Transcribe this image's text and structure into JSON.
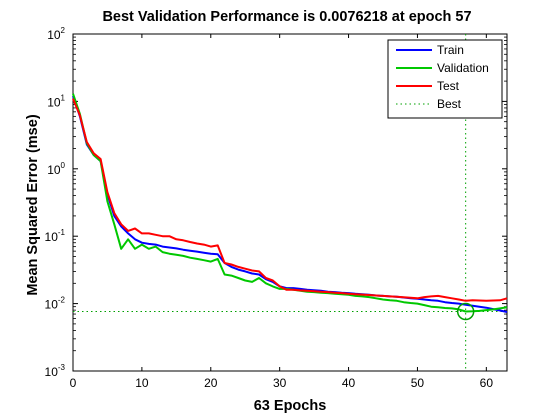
{
  "chart_data": {
    "type": "line",
    "title": "Best Validation Performance is 0.0076218 at epoch 57",
    "xlabel": "63 Epochs",
    "ylabel": "Mean Squared Error  (mse)",
    "xlim": [
      0,
      63
    ],
    "ylim": [
      0.001,
      100
    ],
    "yscale": "log",
    "grid": false,
    "legend_position": "top-right",
    "x_ticks": [
      0,
      10,
      20,
      30,
      40,
      50,
      60
    ],
    "y_ticks": [
      {
        "value": 0.001,
        "base": "10",
        "exp": "-3"
      },
      {
        "value": 0.01,
        "base": "10",
        "exp": "-2"
      },
      {
        "value": 0.1,
        "base": "10",
        "exp": "-1"
      },
      {
        "value": 1,
        "base": "10",
        "exp": "0"
      },
      {
        "value": 10,
        "base": "10",
        "exp": "1"
      },
      {
        "value": 100,
        "base": "10",
        "exp": "2"
      }
    ],
    "series": [
      {
        "name": "Train",
        "color": "#0000ff",
        "x": [
          0,
          1,
          2,
          3,
          4,
          5,
          6,
          7,
          8,
          9,
          10,
          11,
          12,
          13,
          14,
          15,
          16,
          17,
          18,
          19,
          20,
          21,
          22,
          23,
          24,
          25,
          26,
          27,
          28,
          29,
          30,
          31,
          32,
          33,
          34,
          35,
          36,
          37,
          38,
          39,
          40,
          41,
          42,
          43,
          44,
          45,
          46,
          47,
          48,
          49,
          50,
          51,
          52,
          53,
          54,
          55,
          56,
          57,
          58,
          59,
          60,
          61,
          62,
          63
        ],
        "y": [
          12,
          6,
          2.3,
          1.6,
          1.3,
          0.42,
          0.2,
          0.14,
          0.11,
          0.09,
          0.08,
          0.077,
          0.075,
          0.07,
          0.068,
          0.066,
          0.063,
          0.061,
          0.059,
          0.057,
          0.055,
          0.054,
          0.04,
          0.035,
          0.032,
          0.03,
          0.028,
          0.027,
          0.023,
          0.021,
          0.018,
          0.017,
          0.017,
          0.0165,
          0.016,
          0.0158,
          0.0155,
          0.015,
          0.0148,
          0.0145,
          0.0143,
          0.014,
          0.0138,
          0.0135,
          0.0132,
          0.013,
          0.0128,
          0.0126,
          0.0123,
          0.012,
          0.0118,
          0.0115,
          0.0112,
          0.011,
          0.0105,
          0.0102,
          0.01,
          0.0096,
          0.0093,
          0.009,
          0.0087,
          0.0083,
          0.0079,
          0.0075
        ]
      },
      {
        "name": "Validation",
        "color": "#00c800",
        "x": [
          0,
          1,
          2,
          3,
          4,
          5,
          6,
          7,
          8,
          9,
          10,
          11,
          12,
          13,
          14,
          15,
          16,
          17,
          18,
          19,
          20,
          21,
          22,
          23,
          24,
          25,
          26,
          27,
          28,
          29,
          30,
          31,
          32,
          33,
          34,
          35,
          36,
          37,
          38,
          39,
          40,
          41,
          42,
          43,
          44,
          45,
          46,
          47,
          48,
          49,
          50,
          51,
          52,
          53,
          54,
          55,
          56,
          57,
          58,
          59,
          60,
          61,
          62,
          63
        ],
        "y": [
          13,
          6.5,
          2.4,
          1.6,
          1.3,
          0.33,
          0.15,
          0.065,
          0.09,
          0.065,
          0.075,
          0.065,
          0.07,
          0.058,
          0.055,
          0.053,
          0.051,
          0.048,
          0.046,
          0.044,
          0.042,
          0.046,
          0.027,
          0.026,
          0.024,
          0.022,
          0.021,
          0.024,
          0.02,
          0.018,
          0.0165,
          0.0165,
          0.016,
          0.0155,
          0.015,
          0.0148,
          0.0145,
          0.0143,
          0.014,
          0.0138,
          0.0135,
          0.013,
          0.0128,
          0.0125,
          0.012,
          0.0115,
          0.0112,
          0.011,
          0.0105,
          0.0102,
          0.01,
          0.0095,
          0.009,
          0.0088,
          0.0086,
          0.0085,
          0.0082,
          0.0076218,
          0.0077,
          0.0078,
          0.008,
          0.0082,
          0.0085,
          0.0088
        ]
      },
      {
        "name": "Test",
        "color": "#ff0000",
        "x": [
          0,
          1,
          2,
          3,
          4,
          5,
          6,
          7,
          8,
          9,
          10,
          11,
          12,
          13,
          14,
          15,
          16,
          17,
          18,
          19,
          20,
          21,
          22,
          23,
          24,
          25,
          26,
          27,
          28,
          29,
          30,
          31,
          32,
          33,
          34,
          35,
          36,
          37,
          38,
          39,
          40,
          41,
          42,
          43,
          44,
          45,
          46,
          47,
          48,
          49,
          50,
          51,
          52,
          53,
          54,
          55,
          56,
          57,
          58,
          59,
          60,
          61,
          62,
          63
        ],
        "y": [
          11,
          6.2,
          2.5,
          1.7,
          1.4,
          0.45,
          0.22,
          0.15,
          0.12,
          0.13,
          0.11,
          0.11,
          0.105,
          0.1,
          0.1,
          0.09,
          0.087,
          0.082,
          0.078,
          0.075,
          0.07,
          0.073,
          0.04,
          0.038,
          0.035,
          0.033,
          0.031,
          0.03,
          0.024,
          0.022,
          0.018,
          0.016,
          0.016,
          0.0157,
          0.0155,
          0.0153,
          0.015,
          0.0148,
          0.0145,
          0.0143,
          0.014,
          0.0138,
          0.0136,
          0.0134,
          0.0132,
          0.013,
          0.0128,
          0.0126,
          0.0124,
          0.0122,
          0.012,
          0.0125,
          0.0128,
          0.013,
          0.0125,
          0.012,
          0.0115,
          0.011,
          0.0112,
          0.0111,
          0.011,
          0.0111,
          0.0112,
          0.012
        ]
      }
    ],
    "best_marker": {
      "name": "Best",
      "epoch": 57,
      "value": 0.0076218,
      "color": "#00a000"
    }
  }
}
